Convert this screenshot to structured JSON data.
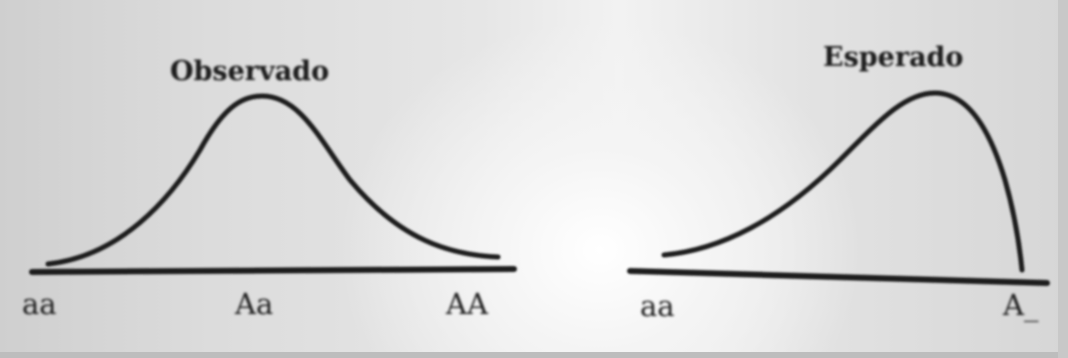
{
  "left_plot": {
    "title": "Observado",
    "x_labels": [
      "aa",
      "Aa",
      "AA"
    ],
    "shape": "symmetric-bell"
  },
  "right_plot": {
    "title": "Esperado",
    "x_labels": [
      "aa",
      "A_"
    ],
    "shape": "skewed-truncated"
  },
  "colors": {
    "ink": "#1c1c1c",
    "paper": "#e8e8e8"
  }
}
